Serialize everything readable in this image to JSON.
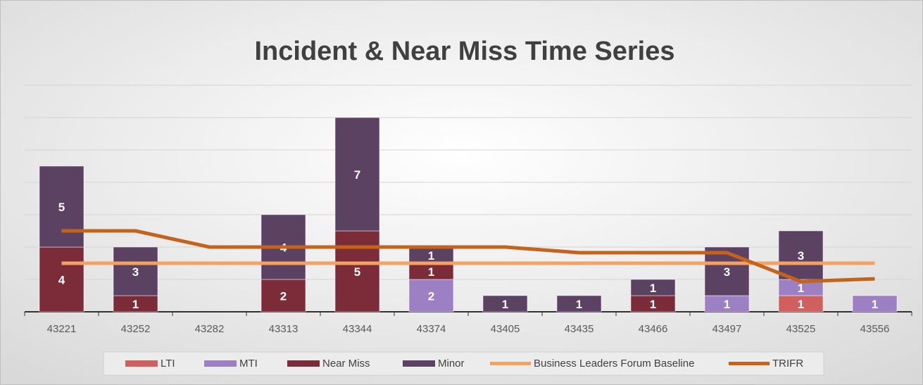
{
  "chart_data": {
    "type": "stacked-bar-line",
    "title": "Incident & Near Miss Time Series",
    "categories": [
      "43221",
      "43252",
      "43282",
      "43313",
      "43344",
      "43374",
      "43405",
      "43435",
      "43466",
      "43497",
      "43525",
      "43556"
    ],
    "series": [
      {
        "name": "LTI",
        "color": "#d0605e",
        "kind": "bar",
        "values": [
          null,
          null,
          null,
          null,
          null,
          null,
          null,
          null,
          null,
          null,
          1,
          null
        ]
      },
      {
        "name": "MTI",
        "color": "#9d80c3",
        "kind": "bar",
        "values": [
          null,
          null,
          null,
          null,
          null,
          2,
          null,
          null,
          null,
          1,
          1,
          1
        ]
      },
      {
        "name": "Near Miss",
        "color": "#7b2c38",
        "kind": "bar",
        "values": [
          4,
          1,
          null,
          2,
          5,
          1,
          null,
          null,
          1,
          null,
          null,
          null
        ]
      },
      {
        "name": "Minor",
        "color": "#5b4162",
        "kind": "bar",
        "values": [
          5,
          3,
          null,
          4,
          7,
          1,
          1,
          1,
          1,
          3,
          3,
          null
        ]
      },
      {
        "name": "Business Leaders Forum Baseline",
        "color": "#f4a262",
        "kind": "line",
        "values": [
          3,
          3,
          3,
          3,
          3,
          3,
          3,
          3,
          3,
          3,
          3,
          3
        ]
      },
      {
        "name": "TRIFR",
        "color": "#c4631c",
        "kind": "line",
        "values": [
          5,
          5,
          4,
          4,
          4,
          4,
          4,
          3.65,
          3.65,
          3.65,
          1.87,
          2.04
        ]
      }
    ],
    "ylim": [
      0,
      14
    ],
    "yticks": [
      2,
      4,
      6,
      8,
      10,
      12,
      14
    ],
    "grid": true
  }
}
